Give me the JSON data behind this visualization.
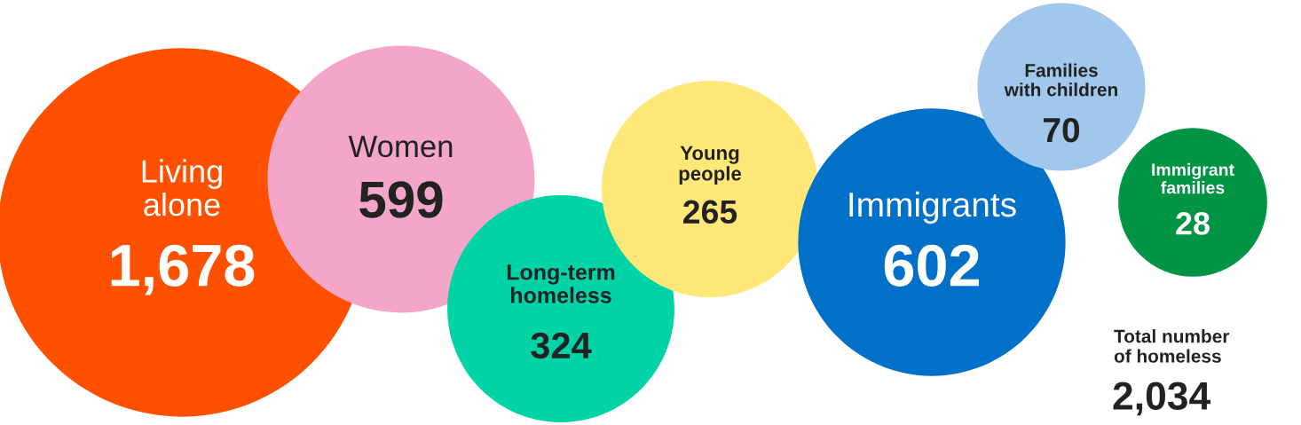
{
  "chart_data": {
    "type": "other",
    "categories": [
      "Living\nalone",
      "Women",
      "Long-term\nhomeless",
      "Young\npeople",
      "Immigrants",
      "Families\nwith children",
      "Immigrant\nfamilies"
    ],
    "values": [
      1678,
      599,
      324,
      265,
      602,
      70,
      28
    ],
    "colors": [
      "#ff5000",
      "#f4a6c9",
      "#00d4a6",
      "#ffe878",
      "#0070c8",
      "#a1c8ec",
      "#009444"
    ],
    "value_labels": [
      "1,678",
      "599",
      "324",
      "265",
      "602",
      "70",
      "28"
    ],
    "annotations": [
      "Total number\nof homeless",
      "2,034"
    ]
  }
}
